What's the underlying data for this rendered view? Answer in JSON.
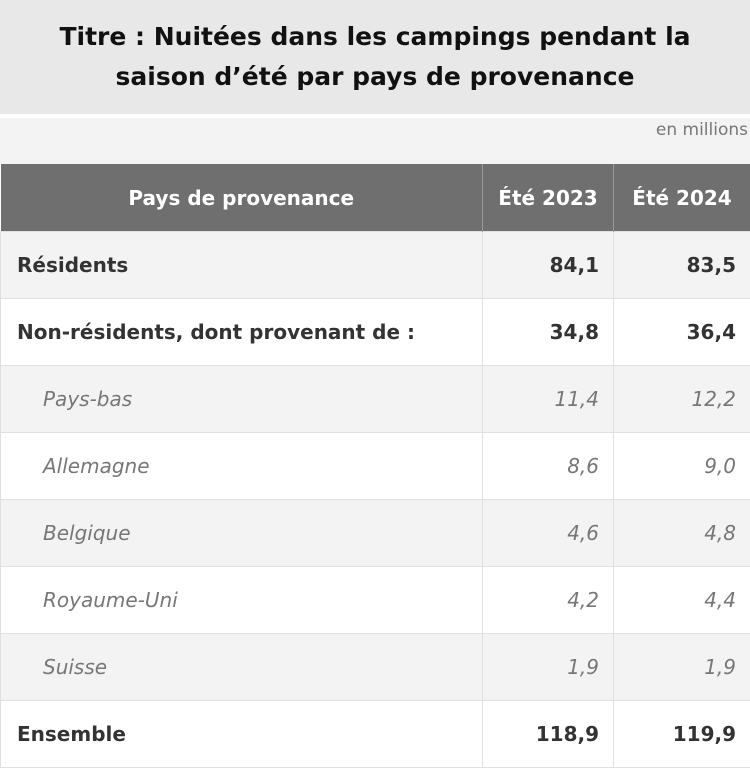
{
  "title": "Titre : Nuitées dans les campings pendant la saison d’été par pays de provenance",
  "unit": "en millions",
  "chart_data": {
    "type": "table",
    "columns": [
      "Pays de provenance",
      "Été 2023",
      "Été 2024"
    ],
    "rows": [
      {
        "label": "Résidents",
        "values": [
          "84,1",
          "83,5"
        ],
        "style": "bold"
      },
      {
        "label": "Non-résidents, dont provenant de :",
        "values": [
          "34,8",
          "36,4"
        ],
        "style": "bold"
      },
      {
        "label": "Pays-bas",
        "values": [
          "11,4",
          "12,2"
        ],
        "style": "sub"
      },
      {
        "label": "Allemagne",
        "values": [
          "8,6",
          "9,0"
        ],
        "style": "sub"
      },
      {
        "label": "Belgique",
        "values": [
          "4,6",
          "4,8"
        ],
        "style": "sub"
      },
      {
        "label": "Royaume-Uni",
        "values": [
          "4,2",
          "4,4"
        ],
        "style": "sub"
      },
      {
        "label": "Suisse",
        "values": [
          "1,9",
          "1,9"
        ],
        "style": "sub"
      },
      {
        "label": "Ensemble",
        "values": [
          "118,9",
          "119,9"
        ],
        "style": "bold"
      }
    ]
  }
}
